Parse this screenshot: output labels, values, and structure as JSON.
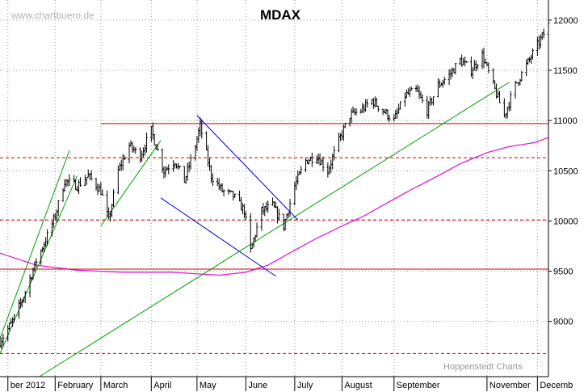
{
  "watermark": "www.chartbuero.de",
  "credit": "Hoppenstedt Charts",
  "colors": {
    "price": "#000000",
    "resistance": "#cc0000",
    "moving_average": "#e020d0",
    "trend": "#00a000",
    "channel": "#0000dd",
    "grid": "#9a9a9a"
  },
  "chart_data": {
    "type": "line",
    "style": "ohlc-bars",
    "title": "MDAX",
    "xlabel": "",
    "ylabel": "",
    "x_range": [
      "2011-12-28",
      "2012-12-10"
    ],
    "ylim": [
      8450,
      12200
    ],
    "y_ticks": [
      9000,
      9500,
      10000,
      10500,
      11000,
      11500,
      12000
    ],
    "x_ticks": [
      {
        "label": "ber 2012",
        "date": "2012-01-02"
      },
      {
        "label": "February",
        "date": "2012-02-01"
      },
      {
        "label": "March",
        "date": "2012-03-01"
      },
      {
        "label": "April",
        "date": "2012-04-02"
      },
      {
        "label": "May",
        "date": "2012-05-01"
      },
      {
        "label": "June",
        "date": "2012-06-01"
      },
      {
        "label": "July",
        "date": "2012-07-02"
      },
      {
        "label": "August",
        "date": "2012-08-01"
      },
      {
        "label": "September",
        "date": "2012-09-03"
      },
      {
        "label": "November",
        "date": "2012-11-01"
      },
      {
        "label": "Decemb",
        "date": "2012-12-03"
      }
    ],
    "grid": true,
    "y_axis_position": "right",
    "price_anchors": [
      {
        "x": "2011-12-28",
        "y": 8800
      },
      {
        "x": "2012-01-05",
        "y": 9000
      },
      {
        "x": "2012-01-12",
        "y": 9250
      },
      {
        "x": "2012-01-20",
        "y": 9600
      },
      {
        "x": "2012-01-27",
        "y": 9850
      },
      {
        "x": "2012-02-01",
        "y": 10050
      },
      {
        "x": "2012-02-07",
        "y": 10400
      },
      {
        "x": "2012-02-15",
        "y": 10350
      },
      {
        "x": "2012-02-22",
        "y": 10450
      },
      {
        "x": "2012-03-01",
        "y": 10300
      },
      {
        "x": "2012-03-06",
        "y": 10000
      },
      {
        "x": "2012-03-12",
        "y": 10500
      },
      {
        "x": "2012-03-19",
        "y": 10750
      },
      {
        "x": "2012-03-26",
        "y": 10650
      },
      {
        "x": "2012-04-02",
        "y": 10900
      },
      {
        "x": "2012-04-10",
        "y": 10500
      },
      {
        "x": "2012-04-17",
        "y": 10600
      },
      {
        "x": "2012-04-23",
        "y": 10400
      },
      {
        "x": "2012-04-30",
        "y": 10750
      },
      {
        "x": "2012-05-03",
        "y": 10950
      },
      {
        "x": "2012-05-10",
        "y": 10450
      },
      {
        "x": "2012-05-17",
        "y": 10300
      },
      {
        "x": "2012-05-24",
        "y": 10250
      },
      {
        "x": "2012-05-31",
        "y": 10100
      },
      {
        "x": "2012-06-04",
        "y": 9700
      },
      {
        "x": "2012-06-11",
        "y": 10100
      },
      {
        "x": "2012-06-18",
        "y": 10150
      },
      {
        "x": "2012-06-25",
        "y": 9950
      },
      {
        "x": "2012-07-02",
        "y": 10350
      },
      {
        "x": "2012-07-09",
        "y": 10600
      },
      {
        "x": "2012-07-16",
        "y": 10650
      },
      {
        "x": "2012-07-23",
        "y": 10500
      },
      {
        "x": "2012-07-30",
        "y": 10800
      },
      {
        "x": "2012-08-06",
        "y": 11050
      },
      {
        "x": "2012-08-13",
        "y": 11100
      },
      {
        "x": "2012-08-20",
        "y": 11200
      },
      {
        "x": "2012-08-27",
        "y": 11100
      },
      {
        "x": "2012-09-03",
        "y": 11000
      },
      {
        "x": "2012-09-10",
        "y": 11250
      },
      {
        "x": "2012-09-17",
        "y": 11300
      },
      {
        "x": "2012-09-24",
        "y": 11100
      },
      {
        "x": "2012-10-01",
        "y": 11350
      },
      {
        "x": "2012-10-08",
        "y": 11450
      },
      {
        "x": "2012-10-15",
        "y": 11600
      },
      {
        "x": "2012-10-22",
        "y": 11500
      },
      {
        "x": "2012-10-29",
        "y": 11650
      },
      {
        "x": "2012-11-05",
        "y": 11350
      },
      {
        "x": "2012-11-12",
        "y": 11050
      },
      {
        "x": "2012-11-19",
        "y": 11350
      },
      {
        "x": "2012-11-26",
        "y": 11550
      },
      {
        "x": "2012-12-03",
        "y": 11750
      },
      {
        "x": "2012-12-10",
        "y": 11950
      }
    ],
    "moving_average": [
      {
        "x": "2011-12-28",
        "y": 9680
      },
      {
        "x": "2012-01-20",
        "y": 9560
      },
      {
        "x": "2012-02-15",
        "y": 9510
      },
      {
        "x": "2012-03-15",
        "y": 9490
      },
      {
        "x": "2012-04-15",
        "y": 9490
      },
      {
        "x": "2012-05-15",
        "y": 9460
      },
      {
        "x": "2012-06-01",
        "y": 9490
      },
      {
        "x": "2012-06-15",
        "y": 9560
      },
      {
        "x": "2012-07-01",
        "y": 9700
      },
      {
        "x": "2012-07-15",
        "y": 9820
      },
      {
        "x": "2012-08-01",
        "y": 9950
      },
      {
        "x": "2012-08-15",
        "y": 10050
      },
      {
        "x": "2012-09-01",
        "y": 10200
      },
      {
        "x": "2012-09-15",
        "y": 10320
      },
      {
        "x": "2012-10-01",
        "y": 10450
      },
      {
        "x": "2012-10-15",
        "y": 10570
      },
      {
        "x": "2012-11-01",
        "y": 10680
      },
      {
        "x": "2012-11-15",
        "y": 10740
      },
      {
        "x": "2012-12-01",
        "y": 10780
      },
      {
        "x": "2012-12-10",
        "y": 10830
      }
    ],
    "horizontal_lines": [
      {
        "y": 10970,
        "style": "solid",
        "from": "2012-03-01"
      },
      {
        "y": 9520,
        "style": "solid"
      },
      {
        "y": 10630,
        "style": "dashed"
      },
      {
        "y": 10010,
        "style": "dashed"
      },
      {
        "y": 8680,
        "style": "dashed"
      }
    ],
    "trendlines": [
      {
        "kind": "trend",
        "from": {
          "x": "2011-12-28",
          "y": 8830
        },
        "to": {
          "x": "2012-02-10",
          "y": 10700
        }
      },
      {
        "kind": "trend",
        "from": {
          "x": "2011-12-28",
          "y": 8680
        },
        "to": {
          "x": "2012-02-15",
          "y": 10450
        }
      },
      {
        "kind": "trend",
        "from": {
          "x": "2012-03-01",
          "y": 9950
        },
        "to": {
          "x": "2012-04-08",
          "y": 10800
        }
      },
      {
        "kind": "trend",
        "from": {
          "x": "2012-01-22",
          "y": 8450
        },
        "to": {
          "x": "2012-11-15",
          "y": 11380
        }
      },
      {
        "kind": "channel",
        "from": {
          "x": "2012-05-01",
          "y": 11050
        },
        "to": {
          "x": "2012-07-04",
          "y": 10010
        }
      },
      {
        "kind": "channel",
        "from": {
          "x": "2012-04-08",
          "y": 10230
        },
        "to": {
          "x": "2012-06-20",
          "y": 9450
        }
      }
    ]
  }
}
